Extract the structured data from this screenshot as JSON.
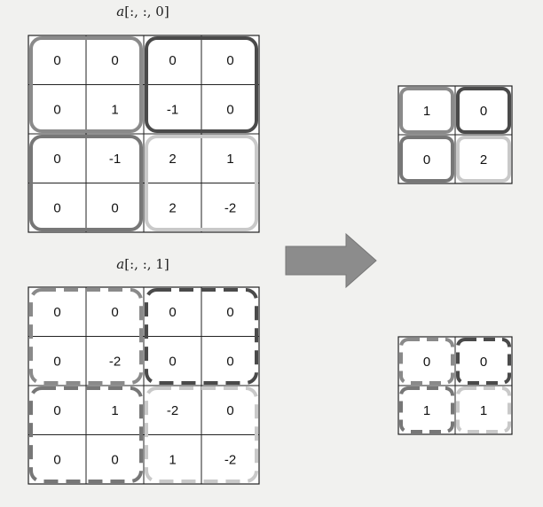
{
  "slice0": {
    "title_var": "a",
    "title_index": "[:, :, 0]",
    "cells": [
      [
        "0",
        "0",
        "0",
        "0"
      ],
      [
        "0",
        "1",
        "-1",
        "0"
      ],
      [
        "0",
        "-1",
        "2",
        "1"
      ],
      [
        "0",
        "0",
        "2",
        "-2"
      ]
    ]
  },
  "slice1": {
    "title_var": "a",
    "title_index": "[:, :, 1]",
    "cells": [
      [
        "0",
        "0",
        "0",
        "0"
      ],
      [
        "0",
        "-2",
        "0",
        "0"
      ],
      [
        "0",
        "1",
        "-2",
        "0"
      ],
      [
        "0",
        "0",
        "1",
        "-2"
      ]
    ]
  },
  "pooled0": {
    "cells": [
      [
        "1",
        "0"
      ],
      [
        "0",
        "2"
      ]
    ]
  },
  "pooled1": {
    "cells": [
      [
        "0",
        "0"
      ],
      [
        "1",
        "1"
      ]
    ]
  },
  "colors": {
    "region_top_left": "#8a8a8a",
    "region_top_right": "#4a4a4a",
    "region_bottom_left": "#777777",
    "region_bottom_right": "#c9c9c9",
    "arrow": "#8c8c8c",
    "grid_line": "#222222"
  }
}
